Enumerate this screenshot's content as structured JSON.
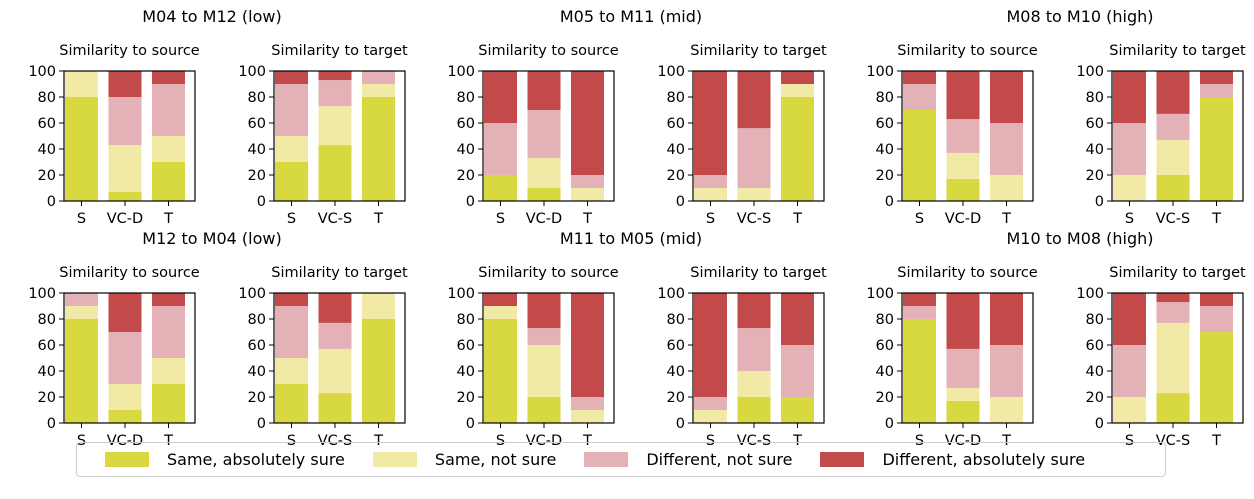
{
  "colors": {
    "same_sure": "#d8d841",
    "same_not_sure": "#f1eaa6",
    "diff_not_sure": "#e3b1b6",
    "diff_sure": "#c24a4b"
  },
  "legend": {
    "items": [
      {
        "label": "Same, absolutely sure",
        "color_key": "same_sure"
      },
      {
        "label": "Same, not sure",
        "color_key": "same_not_sure"
      },
      {
        "label": "Different, not sure",
        "color_key": "diff_not_sure"
      },
      {
        "label": "Different, absolutely sure",
        "color_key": "diff_sure"
      }
    ]
  },
  "chart_data": [
    {
      "type": "bar",
      "stacked": true,
      "title": "M04 to M12 (low)",
      "panels": [
        {
          "subtitle": "Similarity to source",
          "categories": [
            "S",
            "VC-D",
            "T"
          ],
          "ylim": [
            0,
            100
          ],
          "series": [
            {
              "name": "Same, absolutely sure",
              "values": [
                80,
                7,
                30
              ]
            },
            {
              "name": "Same, not sure",
              "values": [
                20,
                36,
                20
              ]
            },
            {
              "name": "Different, not sure",
              "values": [
                0,
                37,
                40
              ]
            },
            {
              "name": "Different, absolutely sure",
              "values": [
                0,
                20,
                10
              ]
            }
          ]
        },
        {
          "subtitle": "Similarity to target",
          "categories": [
            "S",
            "VC-S",
            "T"
          ],
          "ylim": [
            0,
            100
          ],
          "series": [
            {
              "name": "Same, absolutely sure",
              "values": [
                30,
                43,
                80
              ]
            },
            {
              "name": "Same, not sure",
              "values": [
                20,
                30,
                10
              ]
            },
            {
              "name": "Different, not sure",
              "values": [
                40,
                20,
                10
              ]
            },
            {
              "name": "Different, absolutely sure",
              "values": [
                10,
                7,
                0
              ]
            }
          ]
        }
      ]
    },
    {
      "type": "bar",
      "stacked": true,
      "title": "M05 to M11 (mid)",
      "panels": [
        {
          "subtitle": "Similarity to source",
          "categories": [
            "S",
            "VC-D",
            "T"
          ],
          "ylim": [
            0,
            100
          ],
          "series": [
            {
              "name": "Same, absolutely sure",
              "values": [
                20,
                10,
                0
              ]
            },
            {
              "name": "Same, not sure",
              "values": [
                0,
                23,
                10
              ]
            },
            {
              "name": "Different, not sure",
              "values": [
                40,
                37,
                10
              ]
            },
            {
              "name": "Different, absolutely sure",
              "values": [
                40,
                30,
                80
              ]
            }
          ]
        },
        {
          "subtitle": "Similarity to target",
          "categories": [
            "S",
            "VC-S",
            "T"
          ],
          "ylim": [
            0,
            100
          ],
          "series": [
            {
              "name": "Same, absolutely sure",
              "values": [
                0,
                0,
                80
              ]
            },
            {
              "name": "Same, not sure",
              "values": [
                10,
                10,
                10
              ]
            },
            {
              "name": "Different, not sure",
              "values": [
                10,
                46,
                0
              ]
            },
            {
              "name": "Different, absolutely sure",
              "values": [
                80,
                44,
                10
              ]
            }
          ]
        }
      ]
    },
    {
      "type": "bar",
      "stacked": true,
      "title": "M08 to M10 (high)",
      "panels": [
        {
          "subtitle": "Similarity to source",
          "categories": [
            "S",
            "VC-D",
            "T"
          ],
          "ylim": [
            0,
            100
          ],
          "series": [
            {
              "name": "Same, absolutely sure",
              "values": [
                70,
                17,
                0
              ]
            },
            {
              "name": "Same, not sure",
              "values": [
                0,
                20,
                20
              ]
            },
            {
              "name": "Different, not sure",
              "values": [
                20,
                26,
                40
              ]
            },
            {
              "name": "Different, absolutely sure",
              "values": [
                10,
                37,
                40
              ]
            }
          ]
        },
        {
          "subtitle": "Similarity to target",
          "categories": [
            "S",
            "VC-S",
            "T"
          ],
          "ylim": [
            0,
            100
          ],
          "series": [
            {
              "name": "Same, absolutely sure",
              "values": [
                0,
                20,
                80
              ]
            },
            {
              "name": "Same, not sure",
              "values": [
                20,
                27,
                0
              ]
            },
            {
              "name": "Different, not sure",
              "values": [
                40,
                20,
                10
              ]
            },
            {
              "name": "Different, absolutely sure",
              "values": [
                40,
                33,
                10
              ]
            }
          ]
        }
      ]
    },
    {
      "type": "bar",
      "stacked": true,
      "title": "M12 to M04 (low)",
      "panels": [
        {
          "subtitle": "Similarity to source",
          "categories": [
            "S",
            "VC-D",
            "T"
          ],
          "ylim": [
            0,
            100
          ],
          "series": [
            {
              "name": "Same, absolutely sure",
              "values": [
                80,
                10,
                30
              ]
            },
            {
              "name": "Same, not sure",
              "values": [
                10,
                20,
                20
              ]
            },
            {
              "name": "Different, not sure",
              "values": [
                10,
                40,
                40
              ]
            },
            {
              "name": "Different, absolutely sure",
              "values": [
                0,
                30,
                10
              ]
            }
          ]
        },
        {
          "subtitle": "Similarity to target",
          "categories": [
            "S",
            "VC-S",
            "T"
          ],
          "ylim": [
            0,
            100
          ],
          "series": [
            {
              "name": "Same, absolutely sure",
              "values": [
                30,
                23,
                80
              ]
            },
            {
              "name": "Same, not sure",
              "values": [
                20,
                34,
                20
              ]
            },
            {
              "name": "Different, not sure",
              "values": [
                40,
                20,
                0
              ]
            },
            {
              "name": "Different, absolutely sure",
              "values": [
                10,
                23,
                0
              ]
            }
          ]
        }
      ]
    },
    {
      "type": "bar",
      "stacked": true,
      "title": "M11 to M05 (mid)",
      "panels": [
        {
          "subtitle": "Similarity to source",
          "categories": [
            "S",
            "VC-D",
            "T"
          ],
          "ylim": [
            0,
            100
          ],
          "series": [
            {
              "name": "Same, absolutely sure",
              "values": [
                80,
                20,
                0
              ]
            },
            {
              "name": "Same, not sure",
              "values": [
                10,
                40,
                10
              ]
            },
            {
              "name": "Different, not sure",
              "values": [
                0,
                13,
                10
              ]
            },
            {
              "name": "Different, absolutely sure",
              "values": [
                10,
                27,
                80
              ]
            }
          ]
        },
        {
          "subtitle": "Similarity to target",
          "categories": [
            "S",
            "VC-S",
            "T"
          ],
          "ylim": [
            0,
            100
          ],
          "series": [
            {
              "name": "Same, absolutely sure",
              "values": [
                0,
                20,
                20
              ]
            },
            {
              "name": "Same, not sure",
              "values": [
                10,
                20,
                0
              ]
            },
            {
              "name": "Different, not sure",
              "values": [
                10,
                33,
                40
              ]
            },
            {
              "name": "Different, absolutely sure",
              "values": [
                80,
                27,
                40
              ]
            }
          ]
        }
      ]
    },
    {
      "type": "bar",
      "stacked": true,
      "title": "M10 to M08 (high)",
      "panels": [
        {
          "subtitle": "Similarity to source",
          "categories": [
            "S",
            "VC-D",
            "T"
          ],
          "ylim": [
            0,
            100
          ],
          "series": [
            {
              "name": "Same, absolutely sure",
              "values": [
                80,
                17,
                0
              ]
            },
            {
              "name": "Same, not sure",
              "values": [
                0,
                10,
                20
              ]
            },
            {
              "name": "Different, not sure",
              "values": [
                10,
                30,
                40
              ]
            },
            {
              "name": "Different, absolutely sure",
              "values": [
                10,
                43,
                40
              ]
            }
          ]
        },
        {
          "subtitle": "Similarity to target",
          "categories": [
            "S",
            "VC-S",
            "T"
          ],
          "ylim": [
            0,
            100
          ],
          "series": [
            {
              "name": "Same, absolutely sure",
              "values": [
                0,
                23,
                70
              ]
            },
            {
              "name": "Same, not sure",
              "values": [
                20,
                54,
                0
              ]
            },
            {
              "name": "Different, not sure",
              "values": [
                40,
                16,
                20
              ]
            },
            {
              "name": "Different, absolutely sure",
              "values": [
                40,
                7,
                10
              ]
            }
          ]
        }
      ]
    }
  ]
}
